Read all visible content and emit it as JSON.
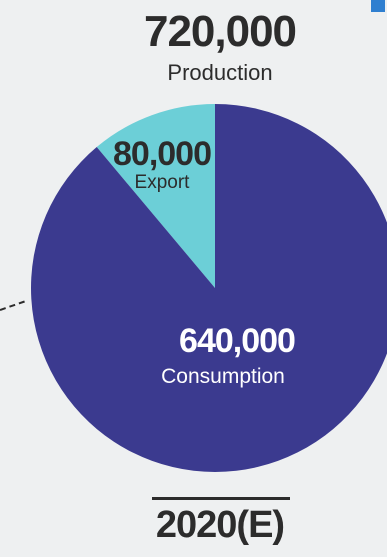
{
  "total": {
    "value": "720,000",
    "label": "Production"
  },
  "chart_data": {
    "type": "pie",
    "total": 720000,
    "slices": [
      {
        "label": "Export",
        "value": 80000,
        "value_text": "80,000",
        "color": "#6ccfd7"
      },
      {
        "label": "Consumption",
        "value": 640000,
        "value_text": "640,000",
        "color": "#3b3a8f"
      }
    ]
  },
  "period": "2020(E)"
}
